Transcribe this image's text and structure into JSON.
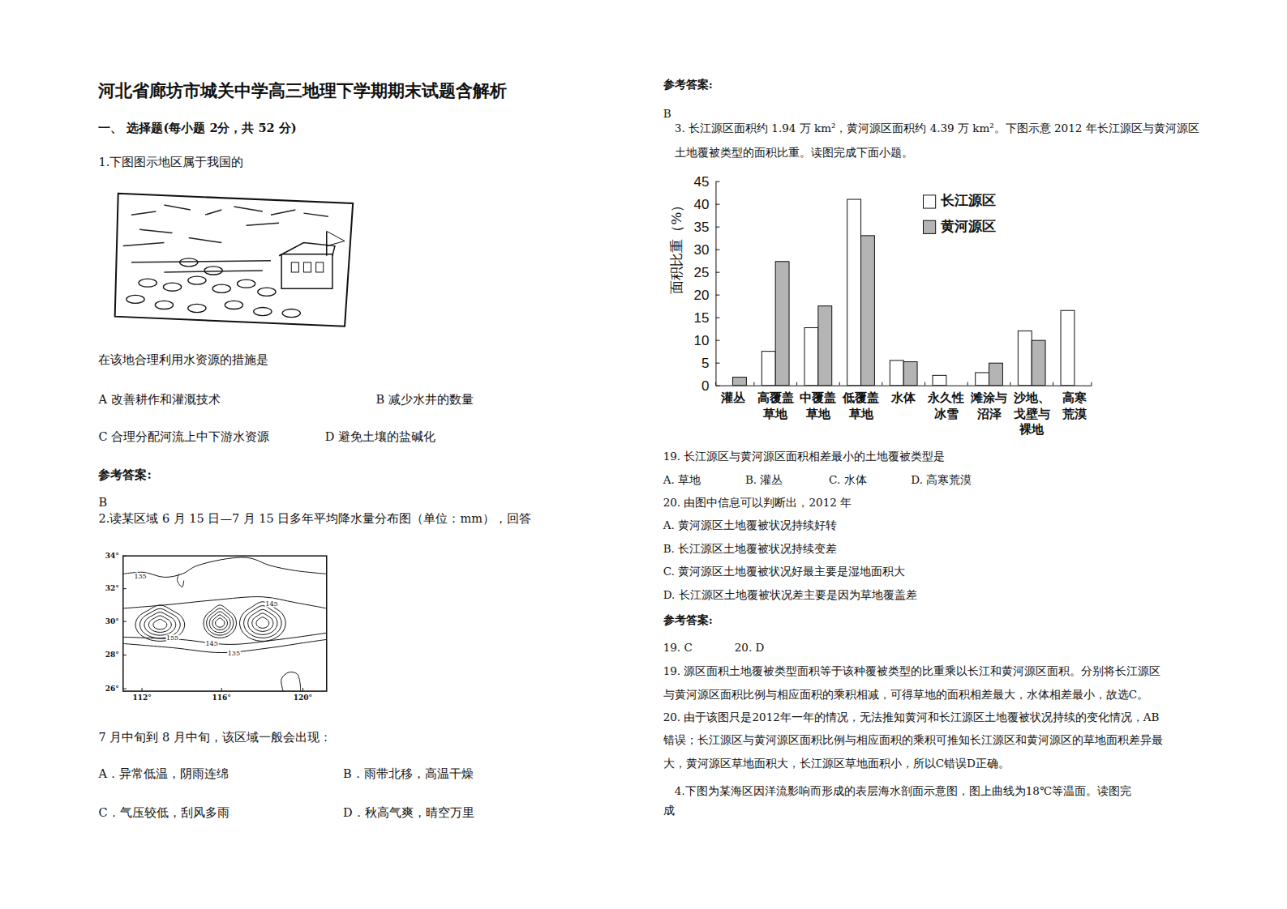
{
  "title": "河北省廊坊市城关中学高三地理下学期期末试题含解析",
  "section": "一、 选择题(每小题 2分，共 52 分)",
  "left_lines": [
    "1.下图图示地区属于我国的",
    "在该地合理利用水资源的措施是",
    "A 改善耕作和灌溉技术",
    "B 减少水井的数量",
    "C 合理分配河流上中下游水资源",
    "D 避免土壤的盐碱化",
    "参考答案:",
    "B",
    "2.读某区域 6 月 15 日—7 月 15 日多年平均降水量分布图（单位：mm），回答",
    "7 月中旬到 8 月中旬，该区域一般会出现：",
    "A．异常低温，阴雨连绵",
    "B．雨带北移，高温干燥",
    "C．气压较低，刮风多雨",
    "D．秋高气爽，晴空万里"
  ],
  "map": {
    "lat_labels": [
      "34°",
      "32°",
      "30°",
      "28°",
      "26°"
    ],
    "lon_labels": [
      "112°",
      "116°",
      "120°"
    ],
    "contour_labels": [
      "135",
      "145",
      "155",
      "145",
      "135"
    ]
  },
  "right_lines": [
    "参考答案:",
    "B",
    "3. 长江源区面积约 1.94 万 km²，黄河源区面积约 4.39 万 km²。下图示意 2012 年长江源区与黄河源区",
    "土地覆被类型的面积比重。读图完成下面小题。",
    "19.  长江源区与黄河源区面积相差最小的土地覆被类型是",
    "A. 草地",
    "B. 灌丛",
    "C. 水体",
    "D. 高寒荒漠",
    "20.  由图中信息可以判断出，2012 年",
    "A.  黄河源区土地覆被状况持续好转",
    "B.  长江源区土地覆被状况持续变差",
    "C.  黄河源区土地覆被状况好最主要是湿地面积大",
    "D.  长江源区土地覆被状况差主要是因为草地覆盖差",
    "参考答案:",
    "19.  C",
    "20.  D",
    "19.  源区面积土地覆被类型面积等于该种覆被类型的比重乘以长江和黄河源区面积。分别将长江源区",
    "与黄河源区面积比例与相应面积的乘积相减，可得草地的面积相差最大，水体相差最小，故选C。",
    "20.  由于该图只是2012年一年的情况，无法推知黄河和长江源区土地覆被状况持续的变化情况，AB",
    "错误；长江源区与黄河源区面积比例与相应面积的乘积可推知长江源区和黄河源区的草地面积差异最",
    "大，黄河源区草地面积大，长江源区草地面积小，所以C错误D正确。",
    "4.下图为某海区因洋流影响而形成的表层海水剖面示意图，图上曲线为18℃等温面。读图完",
    "成"
  ],
  "chart_data": {
    "type": "bar",
    "ylabel": "面积比重（%）",
    "categories": [
      "灌丛",
      "高覆盖\n草地",
      "中覆盖\n草地",
      "低覆盖\n草地",
      "水体",
      "永久性\n冰雪",
      "滩涂与\n沼泽",
      "沙地、\n戈壁与\n裸地",
      "高寒\n荒漠"
    ],
    "series": [
      {
        "name": "长江源区",
        "color": "#ffffff",
        "values": [
          0,
          7.5,
          12.7,
          41,
          5.5,
          2.2,
          2.8,
          12,
          16.5
        ]
      },
      {
        "name": "黄河源区",
        "color": "#b4b4b4",
        "values": [
          1.8,
          27.3,
          17.5,
          33,
          5.2,
          0,
          4.9,
          9.9,
          0
        ]
      }
    ],
    "ylim": [
      0,
      45
    ],
    "yticks": [
      0,
      5,
      10,
      15,
      20,
      25,
      30,
      35,
      40,
      45
    ],
    "legend": "top-right",
    "grid": false
  }
}
